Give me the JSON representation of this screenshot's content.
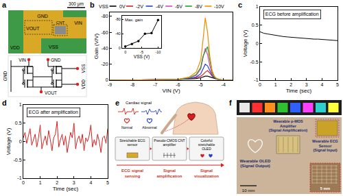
{
  "panel_labels": [
    "a",
    "b",
    "c",
    "d",
    "e",
    "f"
  ],
  "panel_a": {
    "scale_bar": "300 μm",
    "layout_labels": {
      "gnd": "GND",
      "vout": "VOUT",
      "vin": "VIN",
      "vdd": "VDD",
      "vss": "VSS",
      "cnt": "CNT"
    },
    "circuit_labels": {
      "vin": "VIN",
      "gnd_top": "GND",
      "gnd_left": "GND",
      "vss": "VSS",
      "vdd": "VDD",
      "vout": "VOUT"
    }
  },
  "chart_data": [
    {
      "type": "line",
      "x_label": "VIN (V)",
      "y_label": "Gain (V/V)",
      "legend_title": "VSS",
      "legend": "top",
      "grid": false,
      "x": [
        -9,
        -8,
        -7,
        -6,
        -5.5,
        -5.2,
        -5.0,
        -4.9,
        -4.8,
        -4.7,
        -4.6,
        -4.5,
        -4.4,
        -4.3,
        -4.2,
        -4.0,
        -3.8,
        -3.6
      ],
      "xlim": [
        -9,
        -3.6
      ],
      "xticks": [
        -9,
        -8,
        -7,
        -6,
        -5,
        -4
      ],
      "ylim": [
        0,
        -85
      ],
      "yticks": [
        0,
        -20,
        -40,
        -60,
        -80
      ],
      "series": [
        {
          "name": "0V",
          "color": "#000000",
          "values": [
            0,
            0,
            -0.5,
            -1,
            -1.5,
            -2,
            -3,
            -4,
            -5,
            -5,
            -4,
            -3,
            -2,
            -1,
            -0.5,
            0,
            0,
            0
          ]
        },
        {
          "name": "-2V",
          "color": "#e41a1c",
          "values": [
            0,
            0,
            -0.5,
            -1,
            -2,
            -3,
            -5,
            -7,
            -10,
            -12,
            -9,
            -5,
            -3,
            -2,
            -1,
            0,
            0,
            0
          ]
        },
        {
          "name": "-4V",
          "color": "#1f3fd6",
          "values": [
            0,
            0,
            -0.5,
            -1,
            -2,
            -4,
            -8,
            -14,
            -20,
            -18,
            -12,
            -6,
            -3,
            -1.5,
            -1,
            0,
            0,
            0
          ]
        },
        {
          "name": "-6V",
          "color": "#e040c0",
          "values": [
            0,
            0,
            -0.5,
            -1,
            -3,
            -6,
            -14,
            -28,
            -40,
            -32,
            -18,
            -8,
            -4,
            -2,
            -1,
            0,
            0,
            0
          ]
        },
        {
          "name": "-8V",
          "color": "#22a022",
          "values": [
            0,
            0,
            -0.5,
            -1,
            -3,
            -7,
            -16,
            -30,
            -36,
            -42,
            -25,
            -10,
            -4,
            -2,
            -1,
            0,
            0,
            0
          ]
        },
        {
          "name": "-10V",
          "color": "#f08c00",
          "values": [
            0,
            0,
            -0.5,
            -1,
            -4,
            -10,
            -25,
            -50,
            -78,
            -60,
            -30,
            -12,
            -5,
            -2,
            -1,
            0,
            0,
            0
          ]
        }
      ]
    },
    {
      "type": "line",
      "marker": "circle",
      "title": "Max. gain",
      "x_label": "VSS (V)",
      "color": "#000000",
      "grid": false,
      "x": [
        0,
        -2,
        -4,
        -6,
        -8,
        -10
      ],
      "values": [
        -5,
        -12,
        -20,
        -40,
        -42,
        -78
      ],
      "xlim": [
        1,
        -11
      ],
      "xticks": [
        0,
        -5,
        -10
      ],
      "ylim": [
        0,
        -90
      ],
      "yticks": [
        0,
        -40,
        -80
      ]
    },
    {
      "type": "line",
      "annotation": "ECG before amplification",
      "x_label": "Time (sec)",
      "y_label": "Voltage (V)",
      "color": "#000000",
      "grid": false,
      "x": [
        0,
        0.25,
        0.5,
        0.75,
        1,
        1.25,
        1.5,
        1.75,
        2,
        2.25,
        2.5,
        2.75,
        3,
        3.25,
        3.5,
        3.75,
        4,
        4.25,
        4.5,
        4.75,
        5
      ],
      "values": [
        0.32,
        0.28,
        0.26,
        0.24,
        0.22,
        0.2,
        0.19,
        0.18,
        0.17,
        0.16,
        0.15,
        0.15,
        0.14,
        0.13,
        0.12,
        0.12,
        0.11,
        0.1,
        0.09,
        0.08,
        0.08
      ],
      "xlim": [
        0,
        5
      ],
      "xticks": [
        0,
        1,
        2,
        3,
        4,
        5
      ],
      "ylim": [
        -1,
        1
      ],
      "yticks": [
        -1,
        -0.5,
        0,
        0.5,
        1
      ]
    },
    {
      "type": "line",
      "annotation": "ECG after amplification",
      "x_label": "Time (sec)",
      "y_label": "Voltage (V)",
      "color": "#d62020",
      "grid": false,
      "x": [
        0,
        0.1,
        0.2,
        0.3,
        0.4,
        0.5,
        0.6,
        0.7,
        0.8,
        0.9,
        1,
        1.1,
        1.2,
        1.3,
        1.4,
        1.5,
        1.6,
        1.7,
        1.8,
        1.9,
        2,
        2.1,
        2.2,
        2.3,
        2.4,
        2.5,
        2.6,
        2.7,
        2.8,
        2.9,
        3,
        3.1,
        3.2,
        3.3,
        3.4,
        3.5,
        3.6,
        3.7,
        3.8,
        3.9,
        4,
        4.1,
        4.2,
        4.3,
        4.4,
        4.5,
        4.6,
        4.7,
        4.8,
        4.9,
        5
      ],
      "values": [
        0.1,
        0.25,
        -0.05,
        0.15,
        0.35,
        -0.1,
        0.05,
        0.2,
        -0.15,
        0.1,
        0.45,
        -0.2,
        0.0,
        0.15,
        -0.1,
        0.3,
        0.05,
        -0.25,
        0.1,
        0.2,
        0.55,
        -0.15,
        0.05,
        0.2,
        -0.1,
        0.15,
        -0.3,
        0.0,
        0.25,
        0.1,
        0.5,
        -0.2,
        0.05,
        0.15,
        -0.05,
        0.2,
        -0.25,
        0.1,
        0.0,
        0.15,
        0.45,
        -0.15,
        0.05,
        -0.1,
        0.2,
        0.0,
        -0.3,
        0.1,
        0.15,
        -0.05,
        0.35
      ],
      "xlim": [
        0,
        5
      ],
      "xticks": [
        0,
        1,
        2,
        3,
        4,
        5
      ],
      "ylim": [
        -1,
        1
      ],
      "yticks": [
        -1,
        -0.5,
        0,
        0.5,
        1
      ]
    }
  ],
  "panel_e": {
    "cardiac_signal": "Cardiac signal",
    "normal": "Normal",
    "abnormal": "Abnormal",
    "stages": [
      {
        "box": "Stretchable ECG sensor",
        "caption": "ECG signal sensing"
      },
      {
        "box": "Pseudo-CMOS CNT amplifier",
        "caption": "Signal amplification"
      },
      {
        "box": "Colorful stretchable OLED",
        "caption": "Signal visualization"
      }
    ]
  },
  "panel_f": {
    "labels": [
      {
        "lines": [
          "Wearable OLED",
          "(Signal Output)"
        ]
      },
      {
        "lines": [
          "Wearable p-MOS",
          "Amplifier",
          "(Signal Amplification)"
        ]
      },
      {
        "lines": [
          "Wearable ECG",
          "Sensor",
          "(Signal Input)"
        ]
      }
    ],
    "scale_main": "10 mm",
    "scale_inset": "5 mm"
  }
}
